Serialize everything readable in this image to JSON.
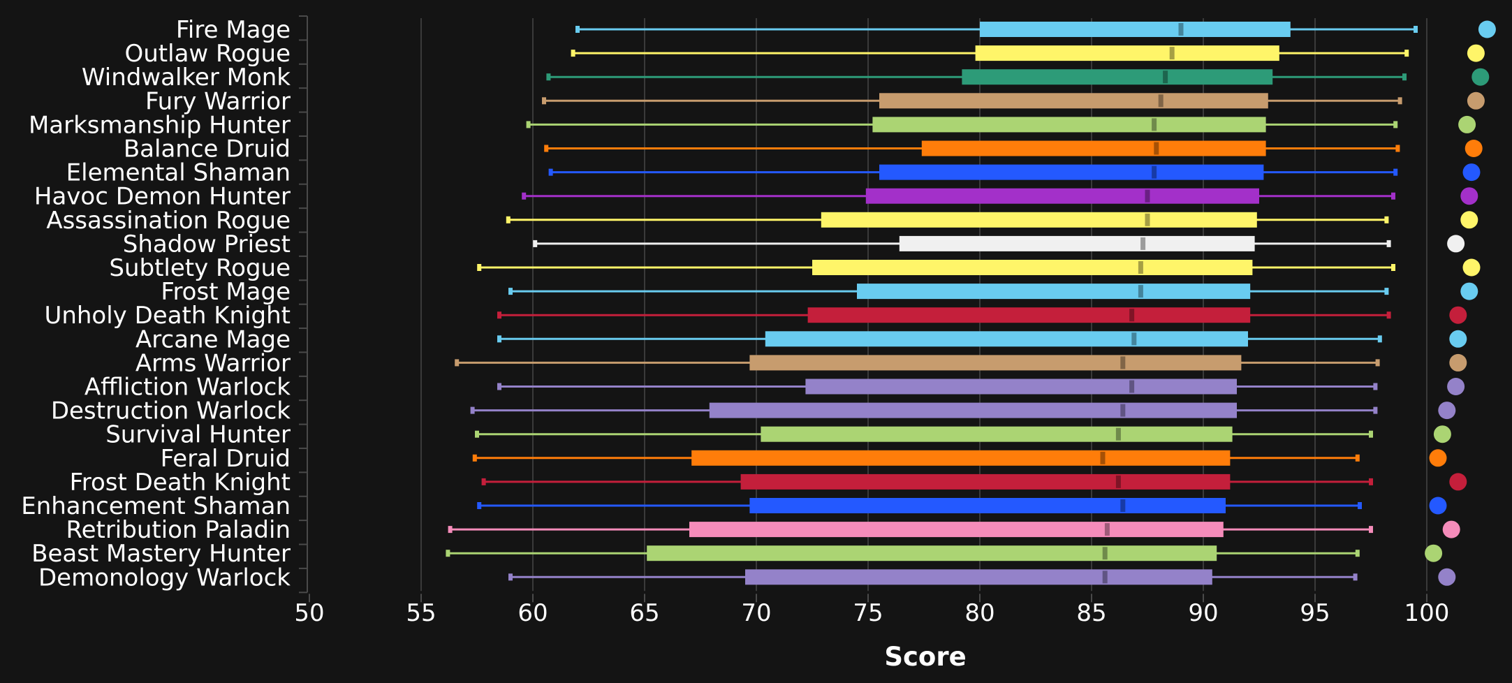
{
  "chart_data": {
    "type": "box",
    "xlabel": "Score",
    "xlim": [
      50,
      100
    ],
    "xticks": [
      50,
      55,
      60,
      65,
      70,
      75,
      80,
      85,
      90,
      95,
      100
    ],
    "grid": true,
    "series": [
      {
        "name": "Fire Mage",
        "color": "#69CCF0",
        "min": 62.0,
        "q1": 80.0,
        "median": 89.0,
        "q3": 93.9,
        "max": 99.5,
        "marker": 102.7
      },
      {
        "name": "Outlaw Rogue",
        "color": "#FFF569",
        "min": 61.8,
        "q1": 79.8,
        "median": 88.6,
        "q3": 93.4,
        "max": 99.1,
        "marker": 102.2
      },
      {
        "name": "Windwalker Monk",
        "color": "#2D9B78",
        "min": 60.7,
        "q1": 79.2,
        "median": 88.3,
        "q3": 93.1,
        "max": 99.0,
        "marker": 102.4
      },
      {
        "name": "Fury Warrior",
        "color": "#C79C6E",
        "min": 60.5,
        "q1": 75.5,
        "median": 88.1,
        "q3": 92.9,
        "max": 98.8,
        "marker": 102.2
      },
      {
        "name": "Marksmanship Hunter",
        "color": "#ABD473",
        "min": 59.8,
        "q1": 75.2,
        "median": 87.8,
        "q3": 92.8,
        "max": 98.6,
        "marker": 101.8
      },
      {
        "name": "Balance Druid",
        "color": "#FF7D0A",
        "min": 60.6,
        "q1": 77.4,
        "median": 87.9,
        "q3": 92.8,
        "max": 98.7,
        "marker": 102.1
      },
      {
        "name": "Elemental Shaman",
        "color": "#2459FF",
        "min": 60.8,
        "q1": 75.5,
        "median": 87.8,
        "q3": 92.7,
        "max": 98.6,
        "marker": 102.0
      },
      {
        "name": "Havoc Demon Hunter",
        "color": "#A330C9",
        "min": 59.6,
        "q1": 74.9,
        "median": 87.5,
        "q3": 92.5,
        "max": 98.5,
        "marker": 101.9
      },
      {
        "name": "Assassination Rogue",
        "color": "#FFF569",
        "min": 58.9,
        "q1": 72.9,
        "median": 87.5,
        "q3": 92.4,
        "max": 98.2,
        "marker": 101.9
      },
      {
        "name": "Shadow Priest",
        "color": "#F0F0F0",
        "min": 60.1,
        "q1": 76.4,
        "median": 87.3,
        "q3": 92.3,
        "max": 98.3,
        "marker": 101.3
      },
      {
        "name": "Subtlety Rogue",
        "color": "#FFF569",
        "min": 57.6,
        "q1": 72.5,
        "median": 87.2,
        "q3": 92.2,
        "max": 98.5,
        "marker": 102.0
      },
      {
        "name": "Frost Mage",
        "color": "#69CCF0",
        "min": 59.0,
        "q1": 74.5,
        "median": 87.2,
        "q3": 92.1,
        "max": 98.2,
        "marker": 101.9
      },
      {
        "name": "Unholy Death Knight",
        "color": "#C41F3B",
        "min": 58.5,
        "q1": 72.3,
        "median": 86.8,
        "q3": 92.1,
        "max": 98.3,
        "marker": 101.4
      },
      {
        "name": "Arcane Mage",
        "color": "#69CCF0",
        "min": 58.5,
        "q1": 70.4,
        "median": 86.9,
        "q3": 92.0,
        "max": 97.9,
        "marker": 101.4
      },
      {
        "name": "Arms Warrior",
        "color": "#C79C6E",
        "min": 56.6,
        "q1": 69.7,
        "median": 86.4,
        "q3": 91.7,
        "max": 97.8,
        "marker": 101.4
      },
      {
        "name": "Affliction Warlock",
        "color": "#9482C9",
        "min": 58.5,
        "q1": 72.2,
        "median": 86.8,
        "q3": 91.5,
        "max": 97.7,
        "marker": 101.3
      },
      {
        "name": "Destruction Warlock",
        "color": "#9482C9",
        "min": 57.3,
        "q1": 67.9,
        "median": 86.4,
        "q3": 91.5,
        "max": 97.7,
        "marker": 100.9
      },
      {
        "name": "Survival Hunter",
        "color": "#ABD473",
        "min": 57.5,
        "q1": 70.2,
        "median": 86.2,
        "q3": 91.3,
        "max": 97.5,
        "marker": 100.7
      },
      {
        "name": "Feral Druid",
        "color": "#FF7D0A",
        "min": 57.4,
        "q1": 67.1,
        "median": 85.5,
        "q3": 91.2,
        "max": 96.9,
        "marker": 100.5
      },
      {
        "name": "Frost Death Knight",
        "color": "#C41F3B",
        "min": 57.8,
        "q1": 69.3,
        "median": 86.2,
        "q3": 91.2,
        "max": 97.5,
        "marker": 101.4
      },
      {
        "name": "Enhancement Shaman",
        "color": "#2459FF",
        "min": 57.6,
        "q1": 69.7,
        "median": 86.4,
        "q3": 91.0,
        "max": 97.0,
        "marker": 100.5
      },
      {
        "name": "Retribution Paladin",
        "color": "#F58CBA",
        "min": 56.3,
        "q1": 67.0,
        "median": 85.7,
        "q3": 90.9,
        "max": 97.5,
        "marker": 101.1
      },
      {
        "name": "Beast Mastery Hunter",
        "color": "#ABD473",
        "min": 56.2,
        "q1": 65.1,
        "median": 85.6,
        "q3": 90.6,
        "max": 96.9,
        "marker": 100.3
      },
      {
        "name": "Demonology Warlock",
        "color": "#9482C9",
        "min": 59.0,
        "q1": 69.5,
        "median": 85.6,
        "q3": 90.4,
        "max": 96.8,
        "marker": 100.9
      }
    ]
  }
}
